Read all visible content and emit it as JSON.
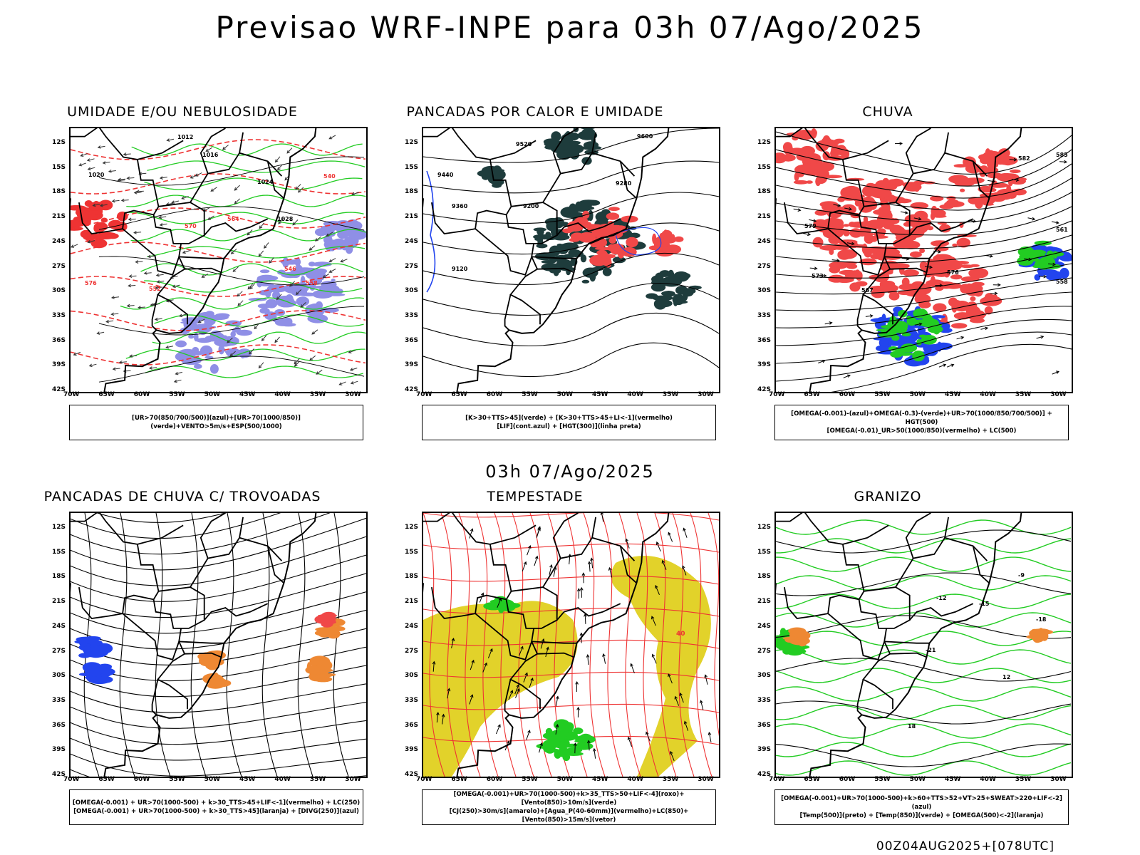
{
  "title": "Previsao WRF-INPE  para 03h 07/Ago/2025",
  "subtitle": "03h 07/Ago/2025",
  "footer": "00Z04AUG2025+[078UTC]",
  "axes": {
    "lat": [
      "12S",
      "15S",
      "18S",
      "21S",
      "24S",
      "27S",
      "30S",
      "33S",
      "36S",
      "39S",
      "42S"
    ],
    "lon": [
      "70W",
      "65W",
      "60W",
      "55W",
      "50W",
      "45W",
      "40W",
      "35W",
      "30W"
    ]
  },
  "colors": {
    "frame": "#000000",
    "humidity_blue": "#8f8fe6",
    "humidity_green": "#22cc22",
    "red_contour": "#ee3333",
    "dark_teal": "#1e3c3c",
    "red_fill": "#f04848",
    "blue_line": "#2244ee",
    "orange": "#ee8833",
    "yellow": "#e2d22a",
    "green_vector": "#22cc22"
  },
  "panels": [
    {
      "title": "UMIDADE E/OU NEBULOSIDADE",
      "legend": [
        "[UR>70(850/700/500)](azul)+[UR>70(1000/850)](verde)+VENTO>5m/s+ESP(500/1000)"
      ],
      "labels": [
        "1012",
        "1016",
        "1020",
        "1024",
        "1028",
        "564",
        "570",
        "576",
        "552",
        "546",
        "540",
        "558"
      ]
    },
    {
      "title": "PANCADAS POR CALOR E UMIDADE",
      "legend": [
        "[K>30+TTS>45](verde) + [K>30+TTS>45+LI<-1](vermelho)",
        "[LIF](cont.azul) + [HGT(300)](linha preta)"
      ],
      "labels": [
        "9600",
        "9520",
        "9440",
        "9360",
        "9280",
        "9200",
        "9120"
      ]
    },
    {
      "title": "CHUVA",
      "legend": [
        "[OMEGA(-0.001)-(azul)+OMEGA(-0.3)-(verde)+UR>70(1000/850/700/500)] + HGT(500)",
        "[OMEGA(-0.01)_UR>50(1000/850)(vermelho) + LC(500)"
      ],
      "labels": [
        "582",
        "585",
        "579",
        "576",
        "573",
        "567",
        "561",
        "558"
      ]
    },
    {
      "title": "PANCADAS DE CHUVA C/ TROVOADAS",
      "legend": [
        "[OMEGA(-0.001) + UR>70(1000-500) + k>30_TTS>45+LIF<-1](vermelho) + LC(250)",
        "[OMEGA(-0.001) + UR>70(1000-500) + k>30_TTS>45](laranja) + [DIVG(250)](azul)"
      ],
      "labels": []
    },
    {
      "title": "TEMPESTADE",
      "legend": [
        "[OMEGA(-0.001)+UR>70(1000-500)+k>35_TTS>50+LIF<-4](roxo)+[Vento(850)>10m/s](verde)",
        "[CJ(250)>30m/s](amarelo)+[Agua_P(40-60mm)](vermelho)+LC(850)+[Vento(850)>15m/s](vetor)"
      ],
      "labels": [
        "40"
      ]
    },
    {
      "title": "GRANIZO",
      "legend": [
        "[OMEGA(-0.001)+UR>70(1000-500)+k>60+TTS>52+VT>25+SWEAT>220+LIF<-2](azul)",
        "[Temp(500)](preto) + [Temp(850)](verde) + [OMEGA(500)<-2](laranja)"
      ],
      "labels": [
        "-9",
        "-12",
        "-15",
        "-18",
        "-21",
        "12",
        "18"
      ]
    }
  ]
}
